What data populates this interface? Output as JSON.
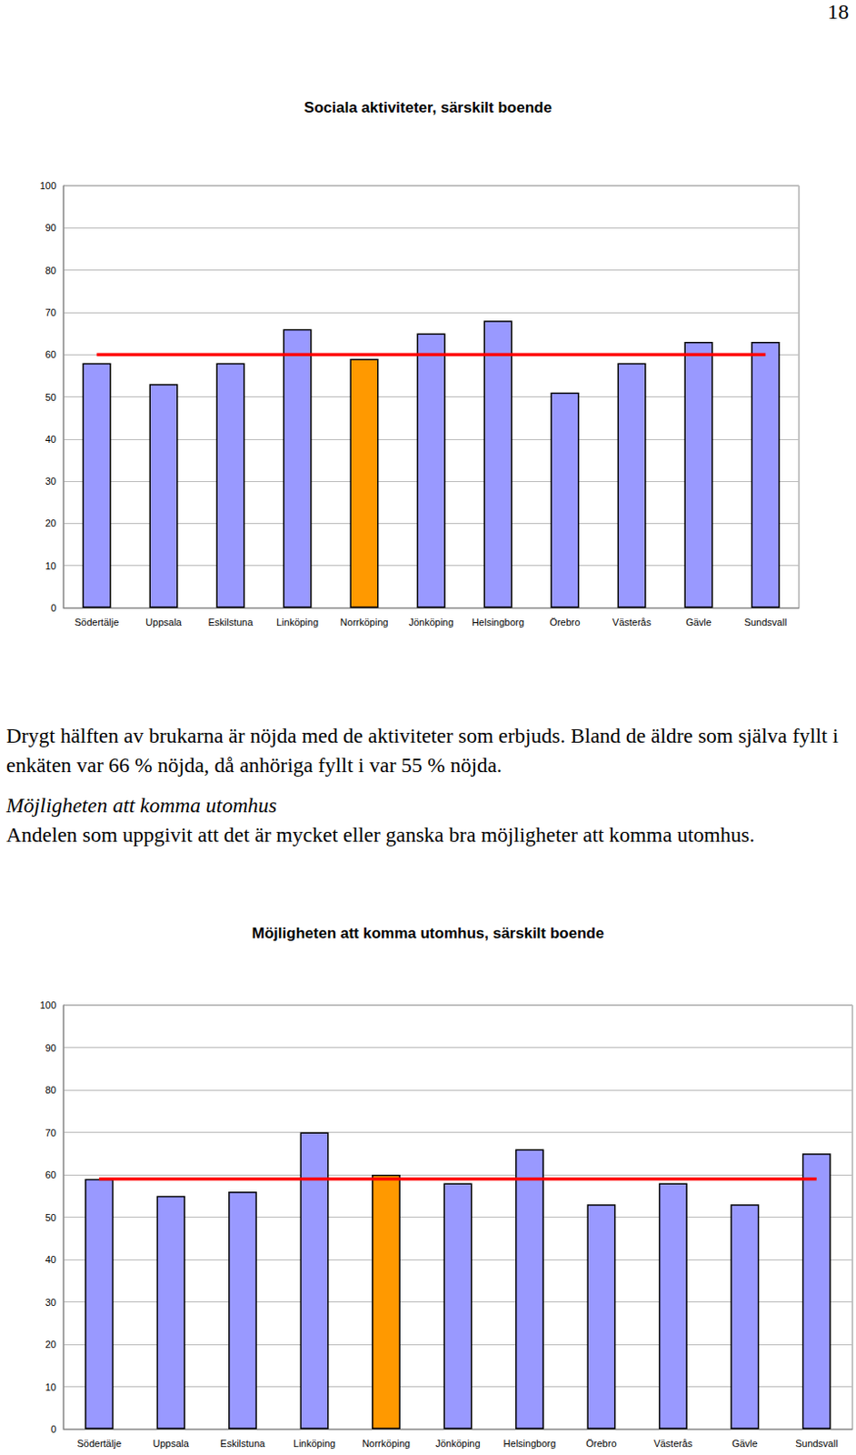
{
  "page_number": "18",
  "chart_data": [
    {
      "type": "bar",
      "title": "Sociala aktiviteter, särskilt boende",
      "categories": [
        "Södertälje",
        "Uppsala",
        "Eskilstuna",
        "Linköping",
        "Norrköping",
        "Jönköping",
        "Helsingborg",
        "Örebro",
        "Västerås",
        "Gävle",
        "Sundsvall"
      ],
      "values": [
        58,
        53,
        58,
        66,
        59,
        65,
        68,
        51,
        58,
        63,
        63
      ],
      "colors": [
        "#9999ff",
        "#9999ff",
        "#9999ff",
        "#9999ff",
        "#ff9900",
        "#9999ff",
        "#9999ff",
        "#9999ff",
        "#9999ff",
        "#9999ff",
        "#9999ff"
      ],
      "reference_line": 60,
      "ylim": [
        0,
        100
      ],
      "yticks": [
        0,
        10,
        20,
        30,
        40,
        50,
        60,
        70,
        80,
        90,
        100
      ],
      "grid": true
    },
    {
      "type": "bar",
      "title": "Möjligheten att komma utomhus, särskilt boende",
      "categories": [
        "Södertälje",
        "Uppsala",
        "Eskilstuna",
        "Linköping",
        "Norrköping",
        "Jönköping",
        "Helsingborg",
        "Örebro",
        "Västerås",
        "Gävle",
        "Sundsvall"
      ],
      "values": [
        59,
        55,
        56,
        70,
        60,
        58,
        66,
        53,
        58,
        53,
        65
      ],
      "colors": [
        "#9999ff",
        "#9999ff",
        "#9999ff",
        "#9999ff",
        "#ff9900",
        "#9999ff",
        "#9999ff",
        "#9999ff",
        "#9999ff",
        "#9999ff",
        "#9999ff"
      ],
      "reference_line": 59,
      "ylim": [
        0,
        100
      ],
      "yticks": [
        0,
        10,
        20,
        30,
        40,
        50,
        60,
        70,
        80,
        90,
        100
      ],
      "grid": true
    }
  ],
  "text": {
    "paragraph_1": "Drygt hälften av brukarna är nöjda med de aktiviteter som erbjuds. Bland de äldre som själva fyllt i enkäten var 66 % nöjda, då anhöriga fyllt i var 55 % nöjda.",
    "heading": "Möjligheten att komma utomhus",
    "paragraph_2": "Andelen som uppgivit att det är mycket eller ganska bra möjligheter att komma utomhus."
  }
}
